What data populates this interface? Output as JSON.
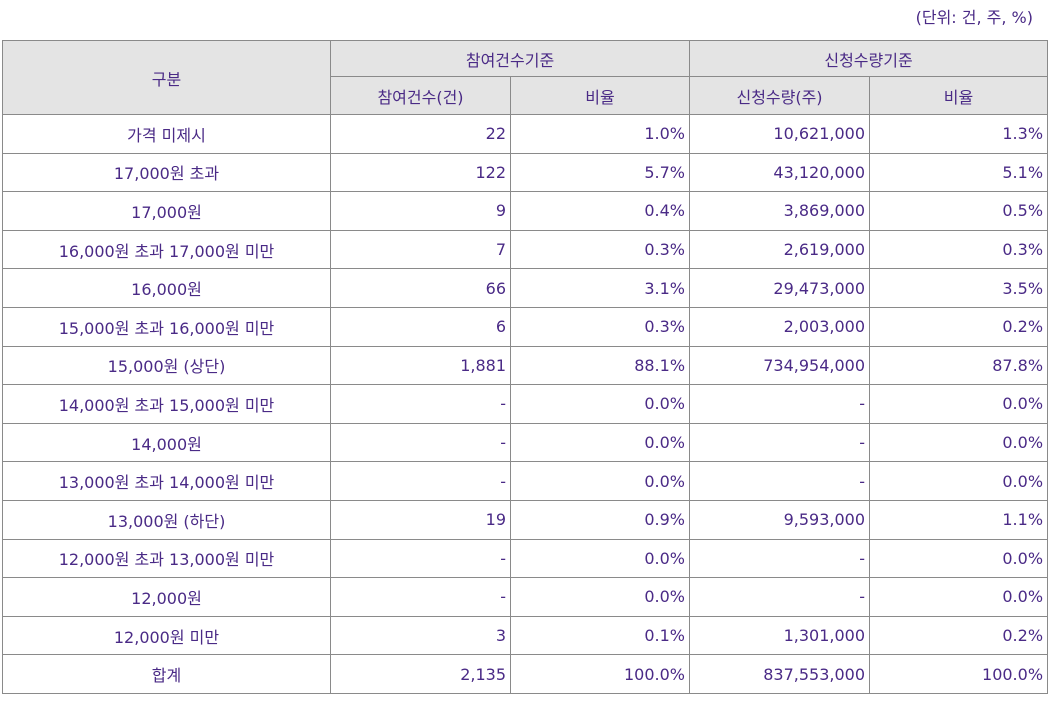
{
  "unit_note": "(단위: 건, 주, %)",
  "header": {
    "category": "구분",
    "group_participation": "참여건수기준",
    "group_quantity": "신청수량기준",
    "participation_count": "참여건수(건)",
    "participation_ratio": "비율",
    "quantity": "신청수량(주)",
    "quantity_ratio": "비율"
  },
  "rows": [
    {
      "category": "가격 미제시",
      "count": "22",
      "count_ratio": "1.0%",
      "quantity": "10,621,000",
      "quantity_ratio": "1.3%"
    },
    {
      "category": "17,000원 초과",
      "count": "122",
      "count_ratio": "5.7%",
      "quantity": "43,120,000",
      "quantity_ratio": "5.1%"
    },
    {
      "category": "17,000원",
      "count": "9",
      "count_ratio": "0.4%",
      "quantity": "3,869,000",
      "quantity_ratio": "0.5%"
    },
    {
      "category": "16,000원 초과 17,000원 미만",
      "count": "7",
      "count_ratio": "0.3%",
      "quantity": "2,619,000",
      "quantity_ratio": "0.3%"
    },
    {
      "category": "16,000원",
      "count": "66",
      "count_ratio": "3.1%",
      "quantity": "29,473,000",
      "quantity_ratio": "3.5%"
    },
    {
      "category": "15,000원 초과 16,000원 미만",
      "count": "6",
      "count_ratio": "0.3%",
      "quantity": "2,003,000",
      "quantity_ratio": "0.2%"
    },
    {
      "category": "15,000원 (상단)",
      "count": "1,881",
      "count_ratio": "88.1%",
      "quantity": "734,954,000",
      "quantity_ratio": "87.8%"
    },
    {
      "category": "14,000원 초과 15,000원 미만",
      "count": "-",
      "count_ratio": "0.0%",
      "quantity": "-",
      "quantity_ratio": "0.0%"
    },
    {
      "category": "14,000원",
      "count": "-",
      "count_ratio": "0.0%",
      "quantity": "-",
      "quantity_ratio": "0.0%"
    },
    {
      "category": "13,000원 초과 14,000원 미만",
      "count": "-",
      "count_ratio": "0.0%",
      "quantity": "-",
      "quantity_ratio": "0.0%"
    },
    {
      "category": "13,000원 (하단)",
      "count": "19",
      "count_ratio": "0.9%",
      "quantity": "9,593,000",
      "quantity_ratio": "1.1%"
    },
    {
      "category": "12,000원 초과 13,000원 미만",
      "count": "-",
      "count_ratio": "0.0%",
      "quantity": "-",
      "quantity_ratio": "0.0%"
    },
    {
      "category": "12,000원",
      "count": "-",
      "count_ratio": "0.0%",
      "quantity": "-",
      "quantity_ratio": "0.0%"
    },
    {
      "category": "12,000원 미만",
      "count": "3",
      "count_ratio": "0.1%",
      "quantity": "1,301,000",
      "quantity_ratio": "0.2%"
    }
  ],
  "total": {
    "category": "합계",
    "count": "2,135",
    "count_ratio": "100.0%",
    "quantity": "837,553,000",
    "quantity_ratio": "100.0%"
  }
}
